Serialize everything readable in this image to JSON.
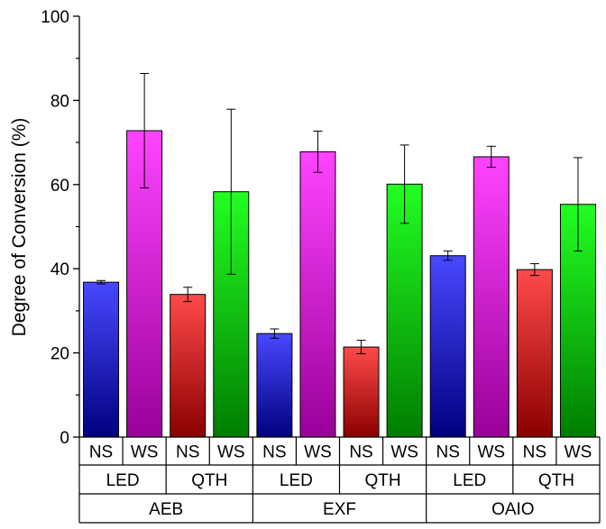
{
  "chart_data": {
    "type": "bar",
    "title": "",
    "xlabel": "",
    "ylabel": "Degree of Conversion (%)",
    "ylim": [
      0,
      100
    ],
    "yticks": [
      "0",
      "20",
      "40",
      "60",
      "80",
      "100"
    ],
    "grid": false,
    "category_levels": {
      "condition": [
        "NS",
        "WS",
        "NS",
        "WS",
        "NS",
        "WS",
        "NS",
        "WS",
        "NS",
        "WS",
        "NS",
        "WS"
      ],
      "light": [
        "LED",
        "QTH",
        "LED",
        "QTH",
        "LED",
        "QTH"
      ],
      "material": [
        "AEB",
        "EXF",
        "OAIO"
      ]
    },
    "bars": [
      {
        "value": 36.8,
        "error": 0.4
      },
      {
        "value": 72.8,
        "error": 13.6
      },
      {
        "value": 33.9,
        "error": 1.7
      },
      {
        "value": 58.3,
        "error": 19.6
      },
      {
        "value": 24.6,
        "error": 1.1
      },
      {
        "value": 67.8,
        "error": 4.9
      },
      {
        "value": 21.4,
        "error": 1.6
      },
      {
        "value": 60.1,
        "error": 9.3
      },
      {
        "value": 43.1,
        "error": 1.1
      },
      {
        "value": 66.6,
        "error": 2.5
      },
      {
        "value": 39.8,
        "error": 1.4
      },
      {
        "value": 55.3,
        "error": 11.1
      }
    ],
    "bar_colors": {
      "LED_NS": [
        "#4848ff",
        "#000080"
      ],
      "LED_WS": [
        "#ff44ff",
        "#990099"
      ],
      "QTH_NS": [
        "#ff4a4a",
        "#8b0000"
      ],
      "QTH_WS": [
        "#22ff22",
        "#007d00"
      ]
    }
  }
}
